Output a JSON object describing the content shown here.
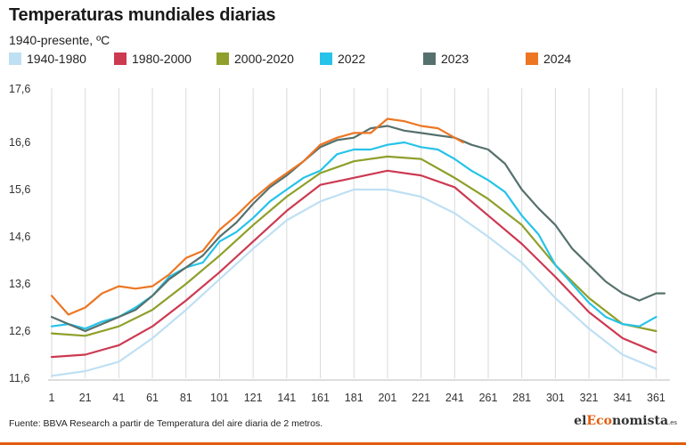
{
  "chart_data": {
    "type": "line",
    "title": "Temperaturas mundiales diarias",
    "subtitle": "1940-presente, ºC",
    "xlabel": "",
    "ylabel": "",
    "xlim": [
      1,
      365
    ],
    "ylim": [
      11.6,
      17.6
    ],
    "x_ticks": [
      1,
      21,
      41,
      61,
      81,
      101,
      121,
      141,
      161,
      181,
      201,
      221,
      241,
      261,
      281,
      301,
      321,
      341,
      361
    ],
    "y_ticks": [
      11.6,
      12.6,
      13.6,
      14.6,
      15.6,
      16.6,
      17.6
    ],
    "y_tick_labels": [
      "11,6",
      "12,6",
      "13,6",
      "14,6",
      "15,6",
      "16,6",
      "17,6"
    ],
    "grid": "vertical",
    "legend_position": "top",
    "series": [
      {
        "name": "1940-1980",
        "color": "#bfe0f2",
        "x": [
          1,
          21,
          41,
          61,
          81,
          101,
          121,
          141,
          161,
          181,
          201,
          221,
          241,
          261,
          281,
          301,
          321,
          341,
          361
        ],
        "y": [
          11.65,
          11.75,
          11.95,
          12.45,
          13.05,
          13.7,
          14.35,
          14.95,
          15.35,
          15.6,
          15.6,
          15.45,
          15.1,
          14.6,
          14.05,
          13.3,
          12.65,
          12.1,
          11.8
        ]
      },
      {
        "name": "1980-2000",
        "color": "#cc3a52",
        "x": [
          1,
          21,
          41,
          61,
          81,
          101,
          121,
          141,
          161,
          181,
          201,
          221,
          241,
          261,
          281,
          301,
          321,
          341,
          361
        ],
        "y": [
          12.05,
          12.1,
          12.3,
          12.7,
          13.25,
          13.85,
          14.5,
          15.15,
          15.7,
          15.85,
          16.0,
          15.9,
          15.65,
          15.05,
          14.45,
          13.75,
          13.0,
          12.45,
          12.15
        ]
      },
      {
        "name": "2000-2020",
        "color": "#8f9f2a",
        "x": [
          1,
          21,
          41,
          61,
          81,
          101,
          121,
          141,
          161,
          181,
          201,
          221,
          241,
          261,
          281,
          301,
          321,
          341,
          361
        ],
        "y": [
          12.55,
          12.5,
          12.7,
          13.05,
          13.6,
          14.2,
          14.85,
          15.45,
          15.95,
          16.2,
          16.3,
          16.25,
          15.85,
          15.4,
          14.85,
          14.0,
          13.3,
          12.75,
          12.6
        ]
      },
      {
        "name": "2022",
        "color": "#27c3e9",
        "x": [
          1,
          11,
          21,
          31,
          41,
          51,
          61,
          71,
          81,
          91,
          101,
          111,
          121,
          131,
          141,
          151,
          161,
          171,
          181,
          191,
          201,
          211,
          221,
          231,
          241,
          251,
          261,
          271,
          281,
          291,
          301,
          311,
          321,
          331,
          341,
          351,
          361
        ],
        "y": [
          12.7,
          12.75,
          12.65,
          12.8,
          12.9,
          13.1,
          13.35,
          13.75,
          13.95,
          14.05,
          14.5,
          14.7,
          15.0,
          15.35,
          15.6,
          15.85,
          16.0,
          16.35,
          16.45,
          16.45,
          16.55,
          16.6,
          16.5,
          16.45,
          16.25,
          16.0,
          15.8,
          15.55,
          15.05,
          14.65,
          14.0,
          13.6,
          13.2,
          12.9,
          12.75,
          12.7,
          12.9
        ]
      },
      {
        "name": "2023",
        "color": "#56716d",
        "x": [
          1,
          11,
          21,
          31,
          41,
          51,
          61,
          71,
          81,
          91,
          101,
          111,
          121,
          131,
          141,
          151,
          161,
          171,
          181,
          191,
          201,
          211,
          221,
          231,
          241,
          251,
          261,
          271,
          281,
          291,
          301,
          311,
          321,
          331,
          341,
          351,
          361,
          366
        ],
        "y": [
          12.9,
          12.75,
          12.6,
          12.75,
          12.9,
          13.05,
          13.35,
          13.7,
          13.95,
          14.2,
          14.6,
          14.9,
          15.3,
          15.65,
          15.9,
          16.2,
          16.5,
          16.65,
          16.7,
          16.9,
          16.95,
          16.85,
          16.8,
          16.75,
          16.7,
          16.55,
          16.45,
          16.15,
          15.6,
          15.2,
          14.85,
          14.35,
          14.0,
          13.65,
          13.4,
          13.25,
          13.4,
          13.4
        ]
      },
      {
        "name": "2024",
        "color": "#ec7623",
        "x": [
          1,
          11,
          21,
          31,
          41,
          51,
          61,
          71,
          81,
          91,
          101,
          111,
          121,
          131,
          141,
          151,
          161,
          171,
          181,
          191,
          201,
          211,
          221,
          231,
          241,
          246
        ],
        "y": [
          13.35,
          12.95,
          13.1,
          13.4,
          13.55,
          13.5,
          13.55,
          13.8,
          14.15,
          14.3,
          14.75,
          15.05,
          15.4,
          15.7,
          15.95,
          16.2,
          16.55,
          16.7,
          16.8,
          16.8,
          17.1,
          17.05,
          16.95,
          16.9,
          16.7,
          16.6
        ]
      }
    ]
  },
  "footer": {
    "source": "Fuente: BBVA Research a partir de Temperatura del aire diaria de 2 metros.",
    "brand_pre": "el",
    "brand_accent": "Eco",
    "brand_post": "nomista",
    "brand_suffix": ".es"
  }
}
